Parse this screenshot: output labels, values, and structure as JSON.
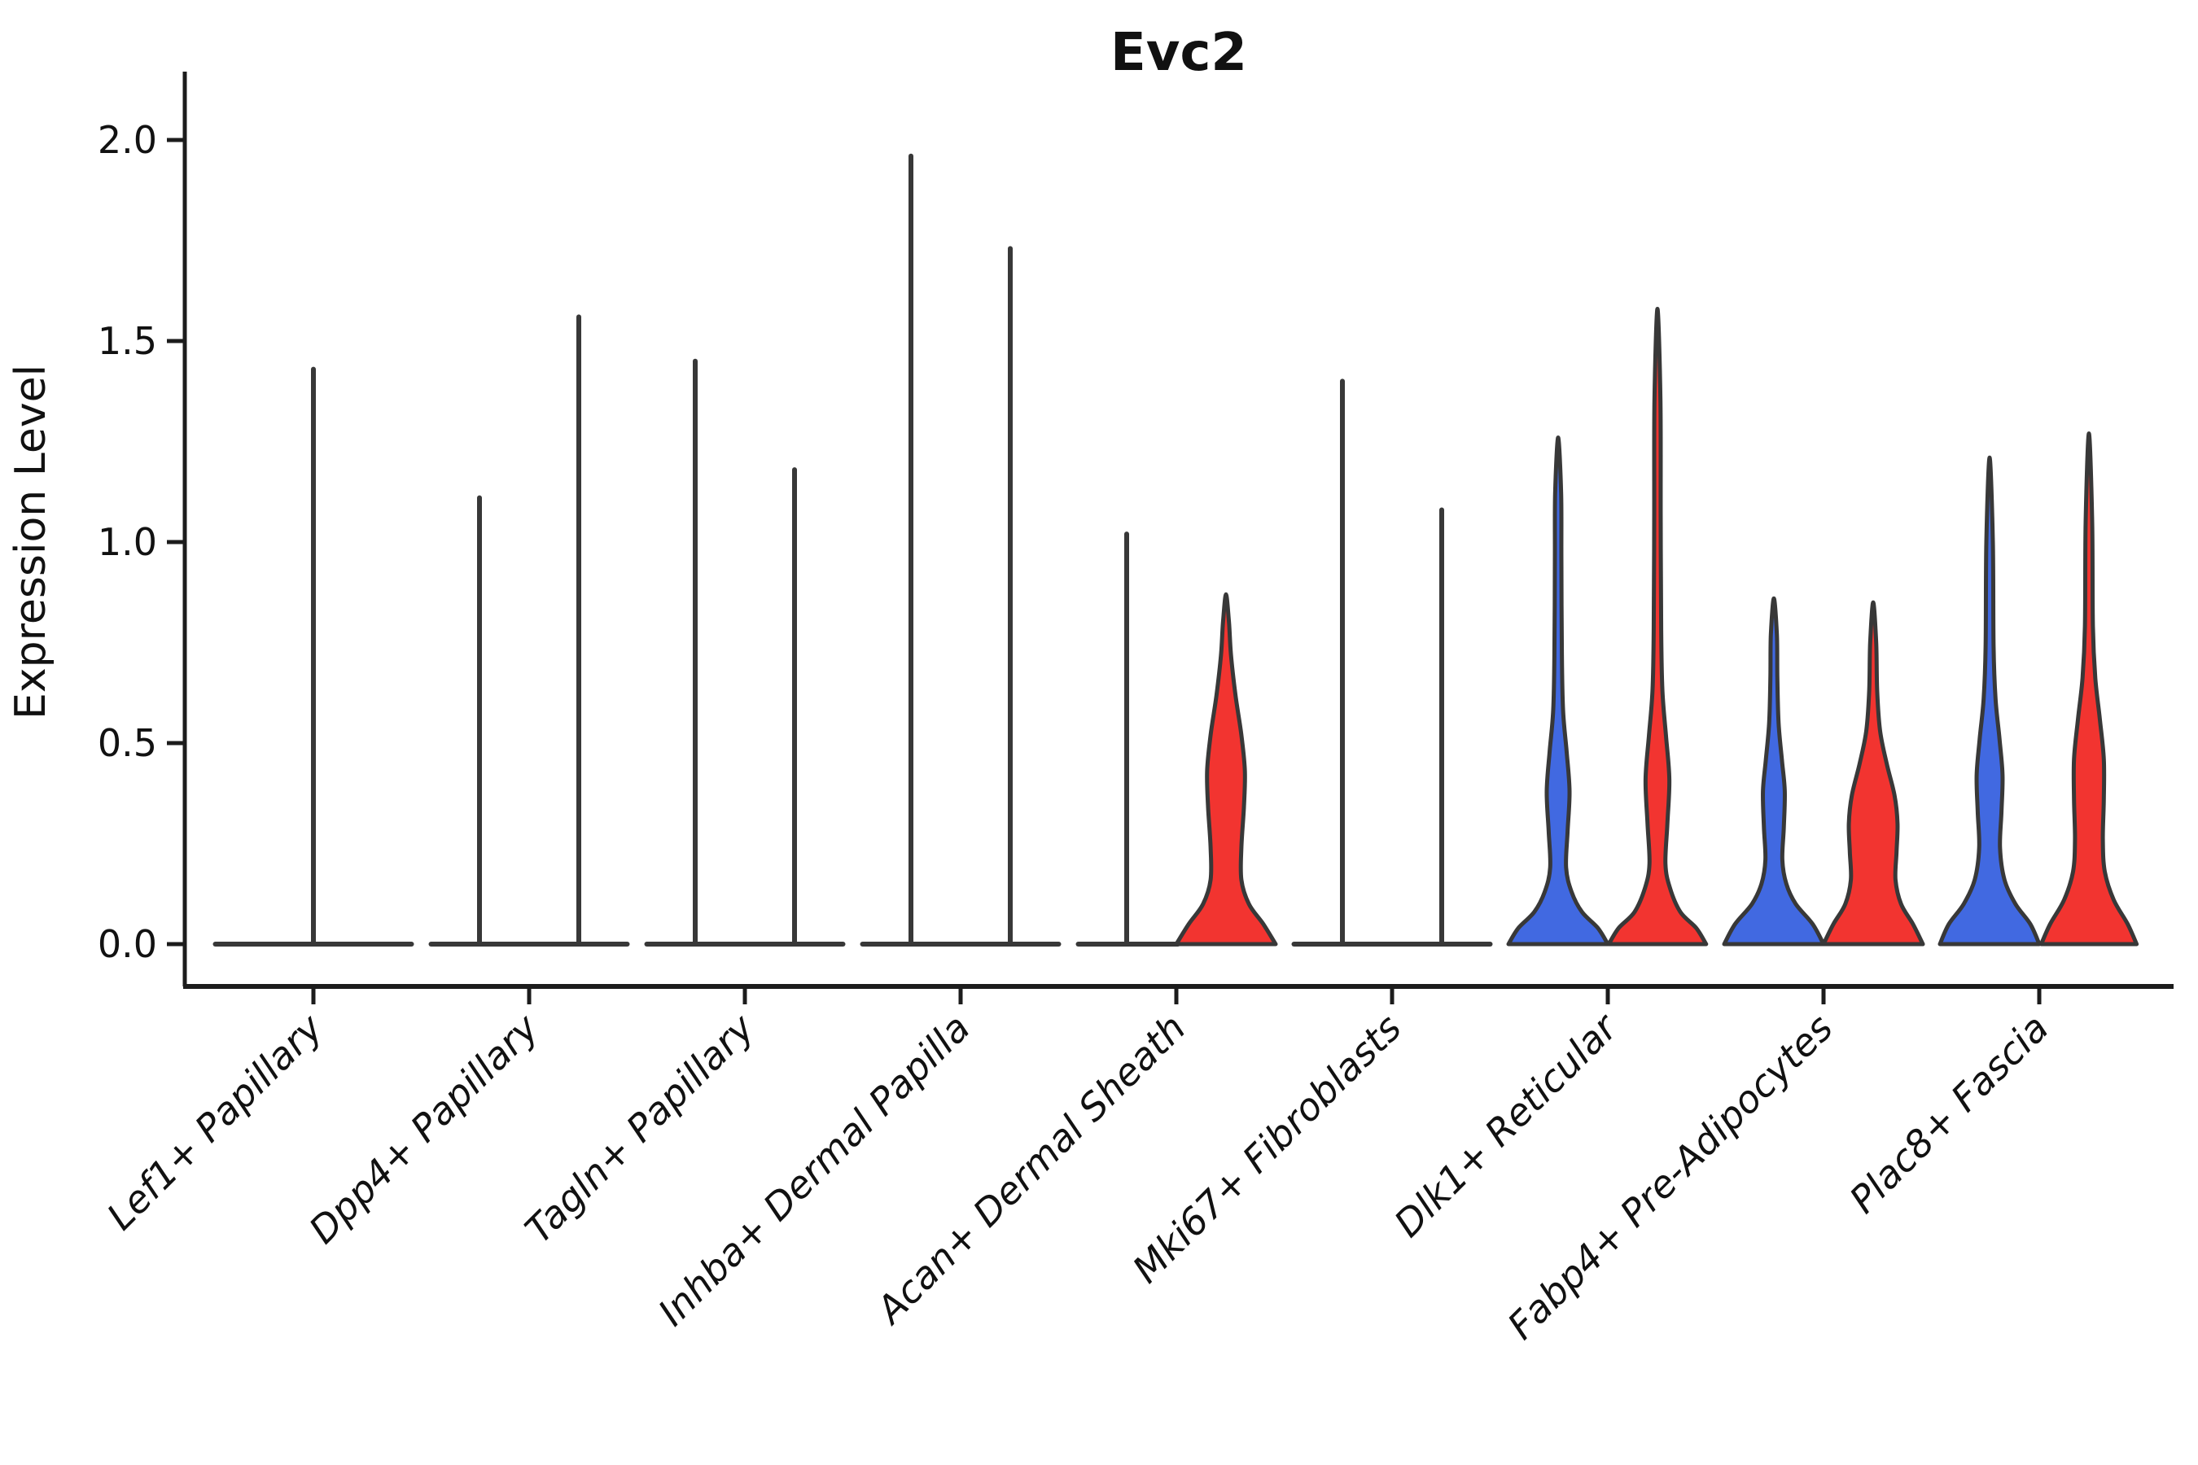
{
  "chart_data": {
    "type": "violin",
    "title": "Evc2",
    "ylabel": "Expression Level",
    "xlabel": "",
    "ylim": [
      0.0,
      2.0
    ],
    "yticks": [
      0.0,
      0.5,
      1.0,
      1.5,
      2.0
    ],
    "grid": false,
    "legend": null,
    "colors": {
      "blue": "#4169E1",
      "red": "#F23430",
      "outline": "#383838",
      "axis": "#1c1c1c"
    },
    "categories": [
      {
        "label": "Lef1+ Papillary",
        "violins": [
          {
            "group": "single",
            "color": null,
            "shape": "collapsed",
            "pos": 0,
            "max": 1.43
          }
        ]
      },
      {
        "label": "Dpp4+ Papillary",
        "violins": [
          {
            "group": "left",
            "color": null,
            "shape": "collapsed",
            "pos": -1,
            "max": 1.11
          },
          {
            "group": "right",
            "color": null,
            "shape": "collapsed",
            "pos": 1,
            "max": 1.56
          }
        ]
      },
      {
        "label": "Tagln+ Papillary",
        "violins": [
          {
            "group": "left",
            "color": null,
            "shape": "collapsed",
            "pos": -1,
            "max": 1.45
          },
          {
            "group": "right",
            "color": null,
            "shape": "collapsed",
            "pos": 1,
            "max": 1.18
          }
        ]
      },
      {
        "label": "Inhba+ Dermal Papilla",
        "violins": [
          {
            "group": "left",
            "color": null,
            "shape": "collapsed",
            "pos": -1,
            "max": 1.96
          },
          {
            "group": "right",
            "color": null,
            "shape": "collapsed",
            "pos": 1,
            "max": 1.73
          }
        ]
      },
      {
        "label": "Acan+ Dermal Sheath",
        "violins": [
          {
            "group": "left",
            "color": null,
            "shape": "collapsed",
            "pos": -1,
            "max": 1.02
          },
          {
            "group": "right",
            "color": "red",
            "shape": "filled",
            "pos": 1,
            "max": 0.87,
            "profile": [
              [
                0,
                1.0
              ],
              [
                0.05,
                0.75
              ],
              [
                0.1,
                0.46
              ],
              [
                0.16,
                0.31
              ],
              [
                0.24,
                0.31
              ],
              [
                0.34,
                0.36
              ],
              [
                0.43,
                0.38
              ],
              [
                0.52,
                0.31
              ],
              [
                0.62,
                0.19
              ],
              [
                0.72,
                0.1
              ],
              [
                0.8,
                0.06
              ],
              [
                0.87,
                0
              ]
            ]
          }
        ]
      },
      {
        "label": "Mki67+ Fibroblasts",
        "violins": [
          {
            "group": "left",
            "color": null,
            "shape": "collapsed",
            "pos": -1,
            "max": 1.4
          },
          {
            "group": "right",
            "color": null,
            "shape": "collapsed",
            "pos": 1,
            "max": 1.08
          }
        ]
      },
      {
        "label": "Dlk1+ Reticular",
        "violins": [
          {
            "group": "left",
            "color": "blue",
            "shape": "filled",
            "pos": -1,
            "max": 1.26,
            "profile": [
              [
                0,
                1.0
              ],
              [
                0.04,
                0.8
              ],
              [
                0.08,
                0.48
              ],
              [
                0.13,
                0.27
              ],
              [
                0.19,
                0.16
              ],
              [
                0.28,
                0.19
              ],
              [
                0.38,
                0.23
              ],
              [
                0.48,
                0.17
              ],
              [
                0.58,
                0.1
              ],
              [
                0.72,
                0.075
              ],
              [
                0.95,
                0.065
              ],
              [
                1.12,
                0.06
              ],
              [
                1.26,
                0
              ]
            ]
          },
          {
            "group": "right",
            "color": "red",
            "shape": "filled",
            "pos": 1,
            "max": 1.58,
            "profile": [
              [
                0,
                0.98
              ],
              [
                0.04,
                0.78
              ],
              [
                0.08,
                0.46
              ],
              [
                0.14,
                0.25
              ],
              [
                0.2,
                0.16
              ],
              [
                0.3,
                0.2
              ],
              [
                0.41,
                0.24
              ],
              [
                0.52,
                0.17
              ],
              [
                0.63,
                0.1
              ],
              [
                0.78,
                0.075
              ],
              [
                1.05,
                0.065
              ],
              [
                1.35,
                0.06
              ],
              [
                1.58,
                0
              ]
            ]
          }
        ]
      },
      {
        "label": "Fabp4+ Pre-Adipocytes",
        "violins": [
          {
            "group": "left",
            "color": "blue",
            "shape": "filled",
            "pos": -1,
            "max": 0.86,
            "profile": [
              [
                0,
                1.0
              ],
              [
                0.05,
                0.78
              ],
              [
                0.1,
                0.44
              ],
              [
                0.15,
                0.25
              ],
              [
                0.21,
                0.17
              ],
              [
                0.29,
                0.2
              ],
              [
                0.38,
                0.22
              ],
              [
                0.46,
                0.16
              ],
              [
                0.55,
                0.095
              ],
              [
                0.66,
                0.07
              ],
              [
                0.77,
                0.06
              ],
              [
                0.86,
                0
              ]
            ]
          },
          {
            "group": "right",
            "color": "red",
            "shape": "filled",
            "pos": 1,
            "max": 0.85,
            "profile": [
              [
                0,
                1.0
              ],
              [
                0.05,
                0.8
              ],
              [
                0.1,
                0.56
              ],
              [
                0.16,
                0.45
              ],
              [
                0.23,
                0.47
              ],
              [
                0.3,
                0.49
              ],
              [
                0.37,
                0.43
              ],
              [
                0.45,
                0.27
              ],
              [
                0.53,
                0.14
              ],
              [
                0.63,
                0.08
              ],
              [
                0.75,
                0.06
              ],
              [
                0.85,
                0
              ]
            ]
          }
        ]
      },
      {
        "label": "Plac8+ Fascia",
        "violins": [
          {
            "group": "left",
            "color": "blue",
            "shape": "filled",
            "pos": -1,
            "max": 1.21,
            "profile": [
              [
                0,
                1.0
              ],
              [
                0.05,
                0.82
              ],
              [
                0.1,
                0.52
              ],
              [
                0.16,
                0.3
              ],
              [
                0.24,
                0.21
              ],
              [
                0.33,
                0.24
              ],
              [
                0.42,
                0.26
              ],
              [
                0.51,
                0.2
              ],
              [
                0.61,
                0.12
              ],
              [
                0.74,
                0.08
              ],
              [
                1.0,
                0.065
              ],
              [
                1.21,
                0
              ]
            ]
          },
          {
            "group": "right",
            "color": "red",
            "shape": "filled",
            "pos": 1,
            "max": 1.27,
            "profile": [
              [
                0,
                0.96
              ],
              [
                0.05,
                0.78
              ],
              [
                0.11,
                0.5
              ],
              [
                0.18,
                0.32
              ],
              [
                0.26,
                0.28
              ],
              [
                0.36,
                0.3
              ],
              [
                0.46,
                0.3
              ],
              [
                0.56,
                0.22
              ],
              [
                0.66,
                0.13
              ],
              [
                0.79,
                0.08
              ],
              [
                1.05,
                0.065
              ],
              [
                1.27,
                0
              ]
            ]
          }
        ]
      }
    ]
  }
}
